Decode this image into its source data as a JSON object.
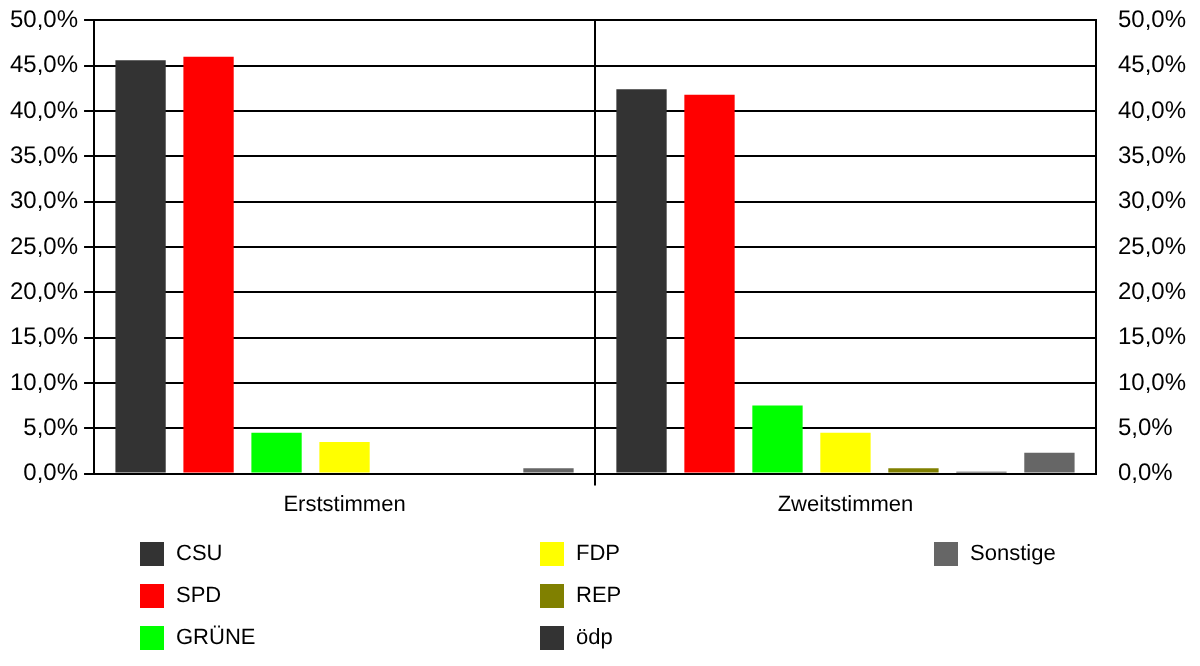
{
  "chart_data": {
    "type": "bar",
    "categories": [
      "Erststimmen",
      "Zweitstimmen"
    ],
    "series": [
      {
        "name": "CSU",
        "color": "#333333",
        "values": [
          45.6,
          42.4
        ]
      },
      {
        "name": "SPD",
        "color": "#ff0000",
        "values": [
          46.0,
          41.8
        ]
      },
      {
        "name": "GRÜNE",
        "color": "#00ff00",
        "values": [
          4.5,
          7.5
        ]
      },
      {
        "name": "FDP",
        "color": "#ffff00",
        "values": [
          3.5,
          4.5
        ]
      },
      {
        "name": "REP",
        "color": "#808000",
        "values": [
          null,
          0.6
        ]
      },
      {
        "name": "ödp",
        "color": "#333333",
        "values": [
          null,
          0.2
        ]
      },
      {
        "name": "Sonstige",
        "color": "#666666",
        "values": [
          0.6,
          2.3
        ]
      }
    ],
    "ylim": [
      0,
      50
    ],
    "yticks": [
      {
        "value": 0,
        "label": "0,0%"
      },
      {
        "value": 5,
        "label": "5,0%"
      },
      {
        "value": 10,
        "label": "10,0%"
      },
      {
        "value": 15,
        "label": "15,0%"
      },
      {
        "value": 20,
        "label": "20,0%"
      },
      {
        "value": 25,
        "label": "25,0%"
      },
      {
        "value": 30,
        "label": "30,0%"
      },
      {
        "value": 35,
        "label": "35,0%"
      },
      {
        "value": 40,
        "label": "40,0%"
      },
      {
        "value": 45,
        "label": "45,0%"
      },
      {
        "value": 50,
        "label": "50,0%"
      }
    ],
    "y2lim": [
      0,
      50
    ],
    "y2ticks": [
      {
        "value": 0,
        "label": "0,0%"
      },
      {
        "value": 5,
        "label": "5,0%"
      },
      {
        "value": 10,
        "label": "10,0%"
      },
      {
        "value": 15,
        "label": "15,0%"
      },
      {
        "value": 20,
        "label": "20,0%"
      },
      {
        "value": 25,
        "label": "25,0%"
      },
      {
        "value": 30,
        "label": "30,0%"
      },
      {
        "value": 35,
        "label": "35,0%"
      },
      {
        "value": 40,
        "label": "40,0%"
      },
      {
        "value": 45,
        "label": "45,0%"
      },
      {
        "value": 50,
        "label": "50,0%"
      }
    ],
    "grid": "y",
    "legend": "bottom"
  }
}
